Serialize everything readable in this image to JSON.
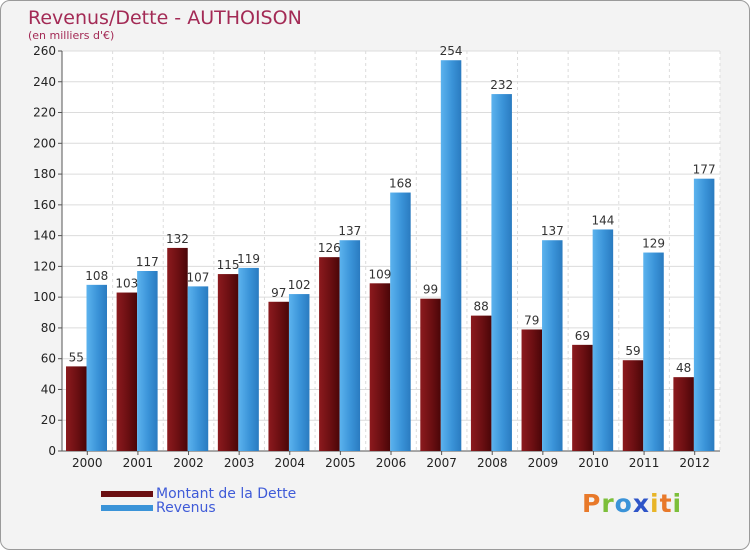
{
  "chart_data": {
    "type": "bar",
    "title": "Revenus/Dette - AUTHOISON",
    "subtitle": "(en milliers d'€)",
    "categories": [
      "2000",
      "2001",
      "2002",
      "2003",
      "2004",
      "2005",
      "2006",
      "2007",
      "2008",
      "2009",
      "2010",
      "2011",
      "2012"
    ],
    "series": [
      {
        "name": "Montant de la Dette",
        "color": "#6b0f12",
        "values": [
          55,
          103,
          132,
          115,
          97,
          126,
          109,
          99,
          88,
          79,
          69,
          59,
          48
        ]
      },
      {
        "name": "Revenus",
        "color": "#3a93d8",
        "values": [
          108,
          117,
          107,
          119,
          102,
          137,
          168,
          254,
          232,
          137,
          144,
          129,
          177
        ]
      }
    ],
    "ylim": [
      0,
      260
    ],
    "yticks": [
      0,
      20,
      40,
      60,
      80,
      100,
      120,
      140,
      160,
      180,
      200,
      220,
      240,
      260
    ],
    "grid": true,
    "legend_position": "bottom-left"
  },
  "logo": {
    "letters": [
      "P",
      "r",
      "o",
      "x",
      "i",
      "t",
      "i"
    ],
    "colors": [
      "#e8792a",
      "#7cbf3a",
      "#3a93d8",
      "#2f55c8",
      "#e8b528",
      "#e8792a",
      "#7cbf3a"
    ]
  }
}
